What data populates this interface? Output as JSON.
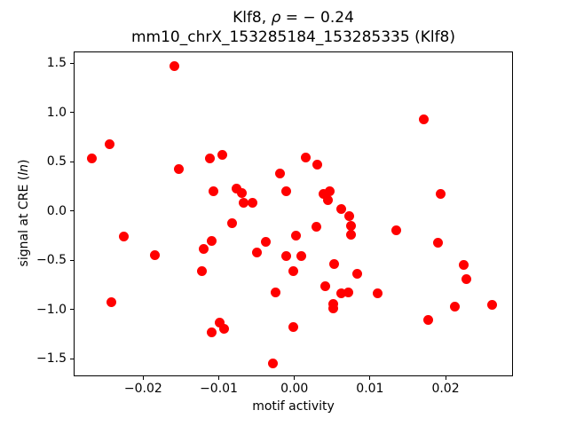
{
  "chart_data": {
    "type": "scatter",
    "title_line1_parts": {
      "prefix": "Klf8, ",
      "rho": "ρ",
      "rest": " = − 0.24"
    },
    "title_line2": "mm10_chrX_153285184_153285335 (Klf8)",
    "xlabel": "motif activity",
    "ylabel_parts": {
      "prefix": "signal at CRE (",
      "italic": "ln",
      "suffix": ")"
    },
    "correlation_rho": -0.24,
    "marker_color": "#ff0000",
    "grid": false,
    "legend": "none",
    "xlim": [
      -0.0292,
      0.0288
    ],
    "ylim": [
      -1.67,
      1.62
    ],
    "x_ticks": [
      -0.02,
      -0.01,
      0.0,
      0.01,
      0.02
    ],
    "x_tick_labels": [
      "−0.02",
      "−0.01",
      "0.00",
      "0.01",
      "0.02"
    ],
    "y_ticks": [
      1.5,
      1.0,
      0.5,
      0.0,
      -0.5,
      -1.0,
      -1.5
    ],
    "y_tick_labels": [
      "1.5",
      "1.0",
      "0.5",
      "0.0",
      "−0.5",
      "−1.0",
      "−1.5"
    ],
    "points": [
      [
        -0.0159,
        1.47
      ],
      [
        -0.0245,
        0.68
      ],
      [
        -0.0268,
        0.53
      ],
      [
        -0.0153,
        0.43
      ],
      [
        -0.0112,
        0.53
      ],
      [
        -0.0095,
        0.57
      ],
      [
        -0.0107,
        0.2
      ],
      [
        -0.0076,
        0.23
      ],
      [
        -0.007,
        0.18
      ],
      [
        -0.0067,
        0.08
      ],
      [
        -0.0056,
        0.08
      ],
      [
        -0.0019,
        0.38
      ],
      [
        -0.0011,
        0.2
      ],
      [
        0.0171,
        0.93
      ],
      [
        0.0015,
        0.54
      ],
      [
        0.003,
        0.47
      ],
      [
        0.0038,
        0.17
      ],
      [
        0.0047,
        0.2
      ],
      [
        0.0044,
        0.11
      ],
      [
        0.0062,
        0.02
      ],
      [
        0.0193,
        0.17
      ],
      [
        0.0072,
        -0.05
      ],
      [
        0.0075,
        -0.15
      ],
      [
        0.0075,
        -0.24
      ],
      [
        0.0029,
        -0.16
      ],
      [
        0.0002,
        -0.25
      ],
      [
        0.0135,
        -0.2
      ],
      [
        0.019,
        -0.32
      ],
      [
        0.0009,
        -0.46
      ],
      [
        -0.0001,
        -0.61
      ],
      [
        0.0053,
        -0.54
      ],
      [
        0.0083,
        -0.64
      ],
      [
        0.0041,
        -0.76
      ],
      [
        0.0062,
        -0.84
      ],
      [
        0.0071,
        -0.83
      ],
      [
        0.011,
        -0.84
      ],
      [
        0.0052,
        -0.94
      ],
      [
        0.0052,
        -0.99
      ],
      [
        0.0224,
        -0.55
      ],
      [
        0.0227,
        -0.69
      ],
      [
        0.0212,
        -0.97
      ],
      [
        0.0261,
        -0.95
      ],
      [
        0.0177,
        -1.11
      ],
      [
        -0.0226,
        -0.26
      ],
      [
        -0.0184,
        -0.45
      ],
      [
        -0.012,
        -0.39
      ],
      [
        -0.011,
        -0.3
      ],
      [
        -0.0122,
        -0.61
      ],
      [
        -0.0083,
        -0.12
      ],
      [
        -0.0038,
        -0.31
      ],
      [
        -0.005,
        -0.42
      ],
      [
        -0.0011,
        -0.46
      ],
      [
        -0.0025,
        -0.83
      ],
      [
        -0.0242,
        -0.93
      ],
      [
        -0.0099,
        -1.13
      ],
      [
        -0.0093,
        -1.2
      ],
      [
        -0.0109,
        -1.23
      ],
      [
        -0.0029,
        -1.55
      ],
      [
        -0.0001,
        -1.18
      ]
    ]
  }
}
